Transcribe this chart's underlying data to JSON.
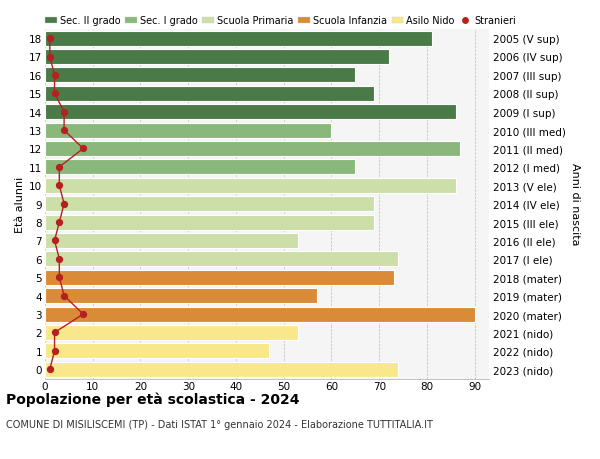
{
  "ages": [
    0,
    1,
    2,
    3,
    4,
    5,
    6,
    7,
    8,
    9,
    10,
    11,
    12,
    13,
    14,
    15,
    16,
    17,
    18
  ],
  "right_labels": [
    "2023 (nido)",
    "2022 (nido)",
    "2021 (nido)",
    "2020 (mater)",
    "2019 (mater)",
    "2018 (mater)",
    "2017 (I ele)",
    "2016 (II ele)",
    "2015 (III ele)",
    "2014 (IV ele)",
    "2013 (V ele)",
    "2012 (I med)",
    "2011 (II med)",
    "2010 (III med)",
    "2009 (I sup)",
    "2008 (II sup)",
    "2007 (III sup)",
    "2006 (IV sup)",
    "2005 (V sup)"
  ],
  "bar_values": [
    74,
    47,
    53,
    90,
    57,
    73,
    74,
    53,
    69,
    69,
    86,
    65,
    87,
    60,
    86,
    69,
    65,
    72,
    81
  ],
  "bar_colors": [
    "#f9e88a",
    "#f9e88a",
    "#f9e88a",
    "#d98b38",
    "#d98b38",
    "#d98b38",
    "#ccdfa8",
    "#ccdfa8",
    "#ccdfa8",
    "#ccdfa8",
    "#ccdfa8",
    "#8ab87a",
    "#8ab87a",
    "#8ab87a",
    "#4a7a48",
    "#4a7a48",
    "#4a7a48",
    "#4a7a48",
    "#4a7a48"
  ],
  "stranieri_values": [
    1,
    2,
    2,
    8,
    4,
    3,
    3,
    2,
    3,
    4,
    3,
    3,
    8,
    4,
    4,
    2,
    2,
    1,
    1
  ],
  "stranieri_color": "#b52020",
  "title": "Popolazione per età scolastica - 2024",
  "subtitle": "COMUNE DI MISILISCEMI (TP) - Dati ISTAT 1° gennaio 2024 - Elaborazione TUTTITALIA.IT",
  "xlabel_values": [
    0,
    10,
    20,
    30,
    40,
    50,
    60,
    70,
    80,
    90
  ],
  "ylabel_text": "Età alunni",
  "right_axis_label": "Anni di nascita",
  "legend_items": [
    {
      "label": "Sec. II grado",
      "color": "#4a7a48",
      "type": "patch"
    },
    {
      "label": "Sec. I grado",
      "color": "#8ab87a",
      "type": "patch"
    },
    {
      "label": "Scuola Primaria",
      "color": "#ccdfa8",
      "type": "patch"
    },
    {
      "label": "Scuola Infanzia",
      "color": "#d98b38",
      "type": "patch"
    },
    {
      "label": "Asilo Nido",
      "color": "#f9e88a",
      "type": "patch"
    },
    {
      "label": "Stranieri",
      "color": "#b52020",
      "type": "marker"
    }
  ],
  "bg_color": "#ffffff",
  "plot_bg_color": "#f5f5f5",
  "xlim": [
    0,
    93
  ],
  "bar_height": 0.82
}
